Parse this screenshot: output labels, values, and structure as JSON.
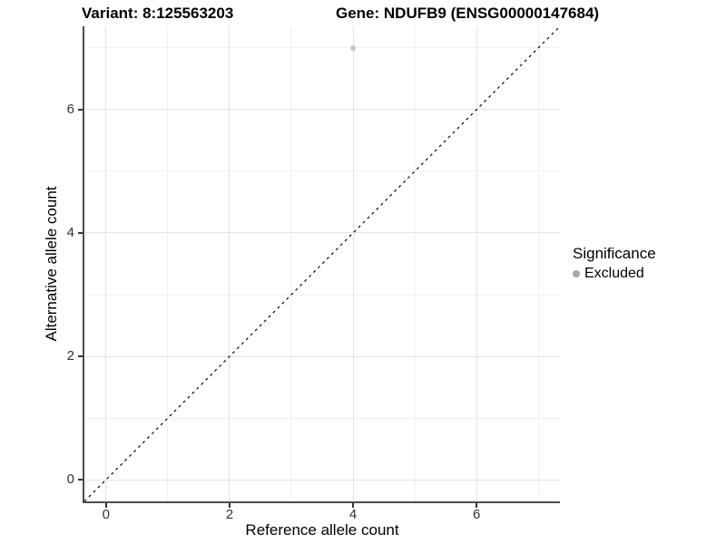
{
  "header": {
    "left_title": "Variant: 8:125563203",
    "right_title": "Gene: NDUFB9 (ENSG00000147684)"
  },
  "chart_data": {
    "type": "scatter",
    "titles": [
      "Variant: 8:125563203",
      "Gene: NDUFB9 (ENSG00000147684)"
    ],
    "xlabel": "Reference allele count",
    "ylabel": "Alternative allele count",
    "xlim": [
      -0.35,
      7.35
    ],
    "ylim": [
      -0.35,
      7.35
    ],
    "x_ticks": [
      0,
      2,
      4,
      6
    ],
    "y_ticks": [
      0,
      2,
      4,
      6
    ],
    "minor_gridlines": [
      1,
      3,
      5,
      7
    ],
    "grid": true,
    "identity_line": {
      "style": "dashed",
      "from": [
        -0.35,
        -0.35
      ],
      "to": [
        7.35,
        7.35
      ],
      "color": "#000000",
      "dash": "3 4"
    },
    "series": [
      {
        "name": "Excluded",
        "color": "#c5c5c5",
        "point_size": 6,
        "points": [
          {
            "x": 4,
            "y": 7
          }
        ]
      }
    ],
    "legend": {
      "title": "Significance",
      "position": "right",
      "items": [
        {
          "label": "Excluded",
          "color": "#a8a8a8"
        }
      ]
    }
  },
  "colors": {
    "background": "#ffffff",
    "grid_major": "#e4e4e4",
    "grid_minor": "#f1f1f1",
    "axis_line": "#4d4d4d",
    "tick_mark": "#333333",
    "tick_label": "#333333",
    "text": "#000000",
    "identity_line": "#000000",
    "point": "#c5c5c5",
    "legend_point": "#a8a8a8"
  }
}
